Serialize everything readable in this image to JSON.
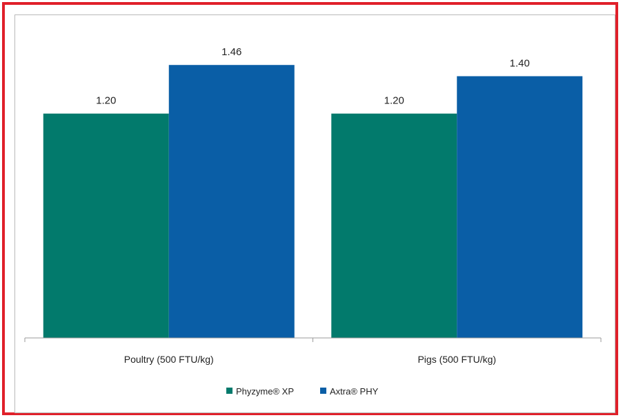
{
  "chart_data": {
    "type": "bar",
    "categories": [
      "Poultry (500 FTU/kg)",
      "Pigs (500 FTU/kg)"
    ],
    "series": [
      {
        "name": "Phyzyme® XP",
        "values": [
          1.2,
          1.2
        ],
        "labels": [
          "1.20",
          "1.20"
        ],
        "color": "#027a6c"
      },
      {
        "name": "Axtra® PHY",
        "values": [
          1.46,
          1.4
        ],
        "labels": [
          "1.46",
          "1.40"
        ],
        "color": "#0a5ea6"
      }
    ],
    "title": "",
    "xlabel": "",
    "ylabel": "",
    "ylim": [
      0,
      1.6
    ],
    "grid": false,
    "legend_position": "bottom"
  },
  "colors": {
    "border": "#e0202a",
    "axis": "#9a9a9a"
  }
}
